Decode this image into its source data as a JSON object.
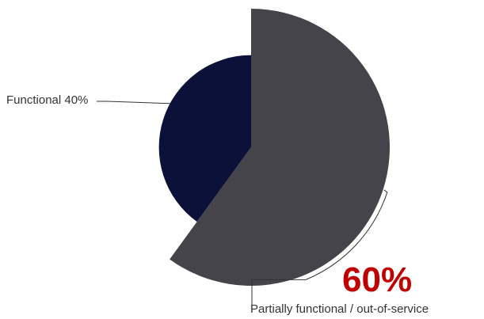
{
  "chart_data": {
    "type": "pie",
    "title": "",
    "slices": [
      {
        "label": "Functional",
        "value": 40,
        "label_text": "Functional 40%",
        "color": "#0b1138",
        "radius_scale": 0.665
      },
      {
        "label": "Partially functional / out-of-service",
        "value": 60,
        "label_text": "Partially functional / out-of-service",
        "color": "#45444a",
        "radius_scale": 1.0
      }
    ],
    "annotations": [
      {
        "text": "60%",
        "color": "#c00000"
      }
    ]
  }
}
